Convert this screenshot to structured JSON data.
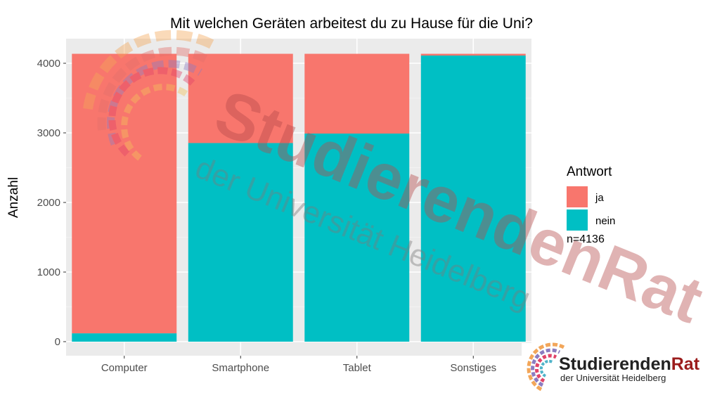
{
  "chart_data": {
    "type": "bar",
    "stacked": true,
    "title": "Mit welchen Geräten arbeitest du zu Hause für die Uni?",
    "xlabel": "",
    "ylabel": "Anzahl",
    "categories": [
      "Computer",
      "Smartphone",
      "Tablet",
      "Sonstiges"
    ],
    "series": [
      {
        "name": "ja",
        "values": [
          4016,
          1282,
          1146,
          25
        ],
        "color": "#F8766D"
      },
      {
        "name": "nein",
        "values": [
          120,
          2854,
          2990,
          4111
        ],
        "color": "#00BFC4"
      }
    ],
    "ylim": [
      0,
      4300
    ],
    "yticks": [
      0,
      1000,
      2000,
      3000,
      4000
    ],
    "ytick_labels": [
      "0",
      "1000",
      "2000",
      "3000",
      "4000"
    ],
    "grid": true,
    "legend": {
      "title": "Antwort",
      "position": "right"
    },
    "annotation": "n=4136"
  },
  "watermark": {
    "main": "StudierendenRat",
    "sub": "der Universität Heidelberg"
  },
  "logo": {
    "name_part1": "Studierenden",
    "name_part2": "Rat",
    "subtitle": "der Universität Heidelberg",
    "colors": {
      "dark": "#222222",
      "red": "#9b1c1c"
    }
  }
}
